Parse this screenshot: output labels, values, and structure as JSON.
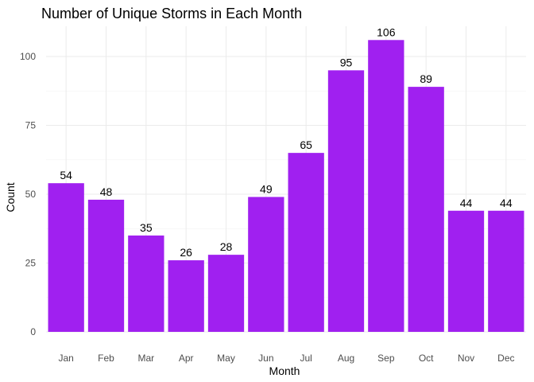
{
  "chart_data": {
    "type": "bar",
    "title": "Number of Unique Storms in Each Month",
    "xlabel": "Month",
    "ylabel": "Count",
    "categories": [
      "Jan",
      "Feb",
      "Mar",
      "Apr",
      "May",
      "Jun",
      "Jul",
      "Aug",
      "Sep",
      "Oct",
      "Nov",
      "Dec"
    ],
    "values": [
      54,
      48,
      35,
      26,
      28,
      49,
      65,
      95,
      106,
      89,
      44,
      44
    ],
    "ylim": [
      0,
      111
    ],
    "yticks": [
      0,
      25,
      50,
      75,
      100
    ],
    "grid": true,
    "bar_color": "#A020F0",
    "show_value_labels": true
  }
}
